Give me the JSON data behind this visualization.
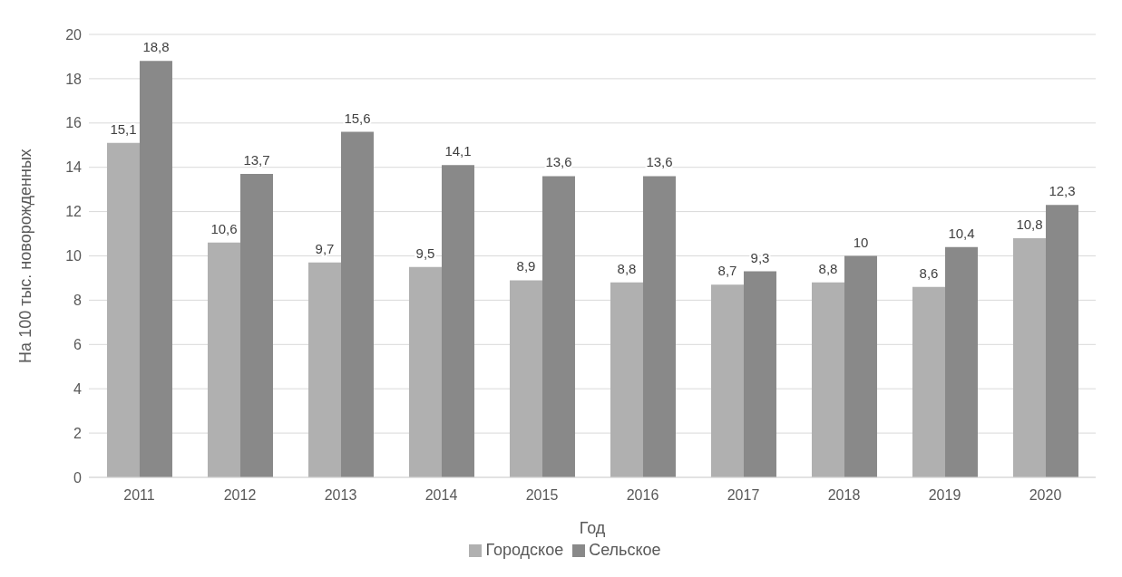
{
  "chart_data": {
    "type": "bar",
    "xlabel": "Год",
    "ylabel": "На 100 тыс. новорожденных",
    "categories": [
      "2011",
      "2012",
      "2013",
      "2014",
      "2015",
      "2016",
      "2017",
      "2018",
      "2019",
      "2020"
    ],
    "series": [
      {
        "name": "Городское",
        "color": "#b0b0b0",
        "values": [
          15.1,
          10.6,
          9.7,
          9.5,
          8.9,
          8.8,
          8.7,
          8.8,
          8.6,
          10.8
        ],
        "value_labels": [
          "15,1",
          "10,6",
          "9,7",
          "9,5",
          "8,9",
          "8,8",
          "8,7",
          "8,8",
          "8,6",
          "10,8"
        ]
      },
      {
        "name": "Сельское",
        "color": "#898989",
        "values": [
          18.8,
          13.7,
          15.6,
          14.1,
          13.6,
          13.6,
          9.3,
          10,
          10.4,
          12.3
        ],
        "value_labels": [
          "18,8",
          "13,7",
          "15,6",
          "14,1",
          "13,6",
          "13,6",
          "9,3",
          "10",
          "10,4",
          "12,3"
        ]
      }
    ],
    "ylim": [
      0,
      20
    ],
    "yticks": [
      0,
      2,
      4,
      6,
      8,
      10,
      12,
      14,
      16,
      18,
      20
    ],
    "grid": "y",
    "legend": "bottom"
  }
}
